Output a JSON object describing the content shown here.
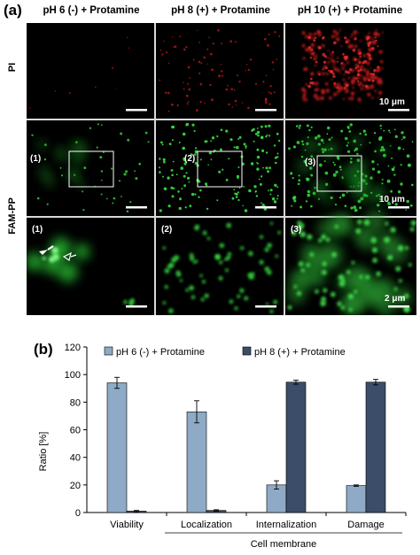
{
  "panel_a": {
    "letter": "(a)",
    "column_titles": [
      "pH 6 (-) + Protamine",
      "pH 8 (+) + Protamine",
      "pH 10 (+) + Protamine"
    ],
    "row_labels": [
      "PI",
      "FAM-PP"
    ],
    "scale_bars": {
      "pi_10": "10 μm",
      "fam_10": "10 μm",
      "zoom_2": "2 μm"
    },
    "inset_labels": [
      "(1)",
      "(2)",
      "(3)"
    ],
    "zoom_labels": [
      "(1)",
      "(2)",
      "(3)"
    ]
  },
  "panel_b": {
    "letter": "(b)"
  },
  "chart_data": {
    "type": "bar",
    "categories": [
      "Viability",
      "Localization",
      "Internalization",
      "Damage"
    ],
    "group_label": "Cell membrane",
    "series": [
      {
        "name": "pH 6 (-) + Protamine",
        "values": [
          94,
          73,
          20,
          19.5
        ],
        "errors": [
          4,
          8,
          3,
          0.5
        ],
        "color": "#8eaac6"
      },
      {
        "name": "pH 8 (+) + Protamine",
        "values": [
          1,
          1.5,
          94.5,
          94.5
        ],
        "errors": [
          0.5,
          0.5,
          1.5,
          2
        ],
        "color": "#3b4d68"
      }
    ],
    "ylabel": "Ratio [%]",
    "ylim": [
      0,
      120
    ],
    "yticks": [
      "0",
      "20",
      "40",
      "60",
      "80",
      "100",
      "120"
    ],
    "legend_position": "top"
  }
}
